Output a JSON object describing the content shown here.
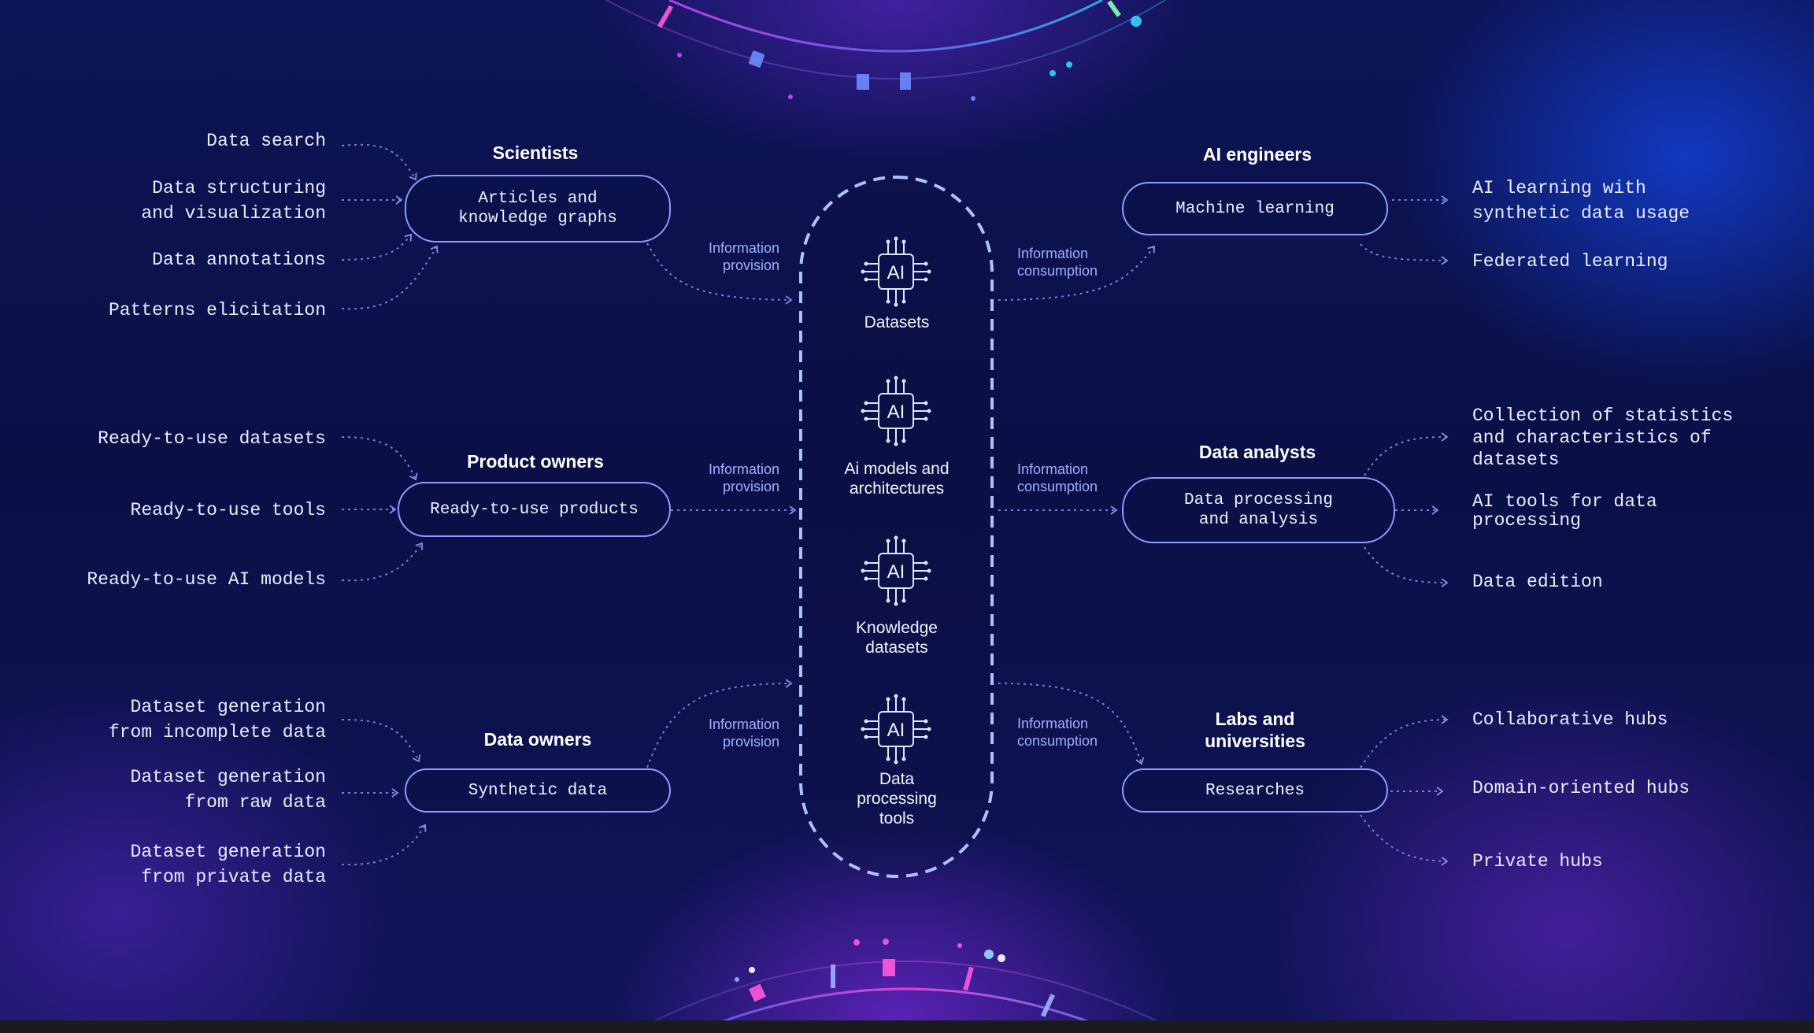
{
  "groups": {
    "scientists": {
      "title": "Scientists",
      "box": "Articles and\nknowledge graphs",
      "inputs": [
        "Data search",
        "Data structuring\nand visualization",
        "Data annotations",
        "Patterns elicitation"
      ],
      "flow": "Information\nprovision"
    },
    "product_owners": {
      "title": "Product owners",
      "box": "Ready-to-use products",
      "inputs": [
        "Ready-to-use datasets",
        "Ready-to-use tools",
        "Ready-to-use AI models"
      ],
      "flow": "Information\nprovision"
    },
    "data_owners": {
      "title": "Data owners",
      "box": "Synthetic data",
      "inputs": [
        "Dataset generation\nfrom incomplete data",
        "Dataset generation\nfrom raw data",
        "Dataset generation\nfrom private data"
      ],
      "flow": "Information\nprovision"
    },
    "ai_engineers": {
      "title": "AI engineers",
      "box": "Machine learning",
      "outputs": [
        "AI learning with\nsynthetic data usage",
        "Federated learning"
      ],
      "flow": "Information\nconsumption"
    },
    "data_analysts": {
      "title": "Data analysts",
      "box": "Data processing\nand analysis",
      "outputs": [
        "Collection of statistics\nand characteristics of\ndatasets",
        "AI tools for data\nprocessing",
        "Data edition"
      ],
      "flow": "Information\nconsumption"
    },
    "labs": {
      "title": "Labs and\nuniversities",
      "box": "Researches",
      "outputs": [
        "Collaborative hubs",
        "Domain-oriented hubs",
        "Private hubs"
      ],
      "flow": "Information\nconsumption"
    }
  },
  "hub": {
    "chip_text": "AI",
    "items": [
      "Datasets",
      "Ai models and\narchitectures",
      "Knowledge\ndatasets",
      "Data\nprocessing\ntools"
    ]
  },
  "colors": {
    "accent": "#8c9cff",
    "hub_border": "#a9c3ff",
    "text": "#e9ecff",
    "background": "#0a1150"
  }
}
